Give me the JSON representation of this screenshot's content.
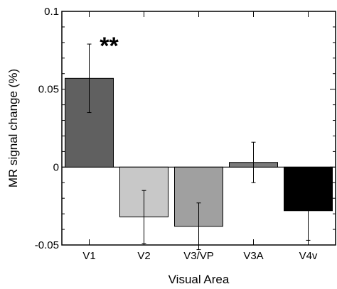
{
  "chart_data": {
    "type": "bar",
    "title": "",
    "xlabel": "Visual Area",
    "ylabel": "MR signal change (%)",
    "categories": [
      "V1",
      "V2",
      "V3/VP",
      "V3A",
      "V4v"
    ],
    "values": [
      0.057,
      -0.032,
      -0.038,
      0.003,
      -0.028
    ],
    "errors": [
      0.022,
      0.017,
      0.015,
      0.013,
      0.019
    ],
    "colors": [
      "#606060",
      "#c8c8c8",
      "#a0a0a0",
      "#7a7a7a",
      "#000000"
    ],
    "ylim": [
      -0.05,
      0.1
    ],
    "yticks": [
      -0.05,
      0,
      0.05,
      0.1
    ],
    "ytick_labels": [
      "-0.05",
      "0",
      "0.05",
      "0.1"
    ],
    "annotations": [
      {
        "category": "V1",
        "text": "**"
      }
    ],
    "grid": false,
    "legend": "none"
  }
}
